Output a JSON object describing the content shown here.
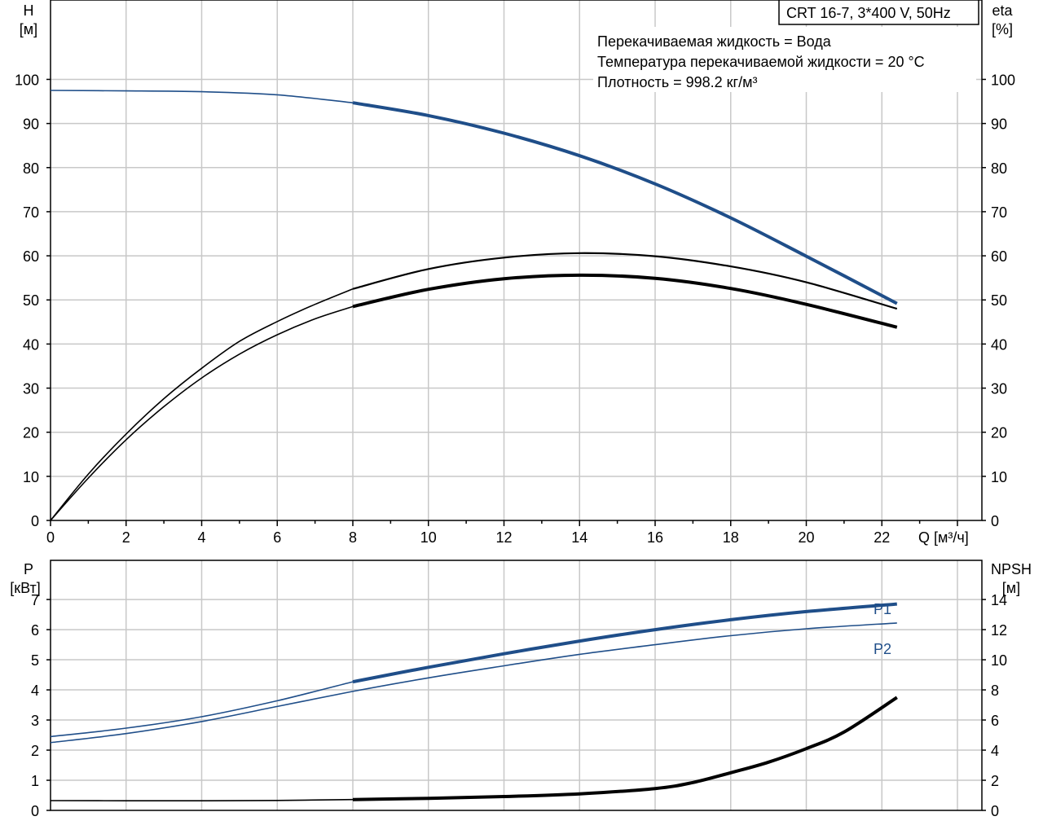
{
  "title_box": "CRT 16-7, 3*400 V, 50Hz",
  "info_lines": [
    "Перекачиваемая жидкость = Вода",
    "Температура перекачиваемой жидкости = 20 °C",
    "Плотность = 998.2 кг/м³"
  ],
  "colors": {
    "blue": "#1f4e89",
    "black": "#000000",
    "grid": "#c8c8c8"
  },
  "chart_data": [
    {
      "type": "line",
      "x_axis": {
        "unit_label": "Q [м³/ч]",
        "range": [
          0,
          24
        ],
        "ticks": [
          0,
          2,
          4,
          6,
          8,
          10,
          12,
          14,
          16,
          18,
          20,
          22
        ]
      },
      "y_left": {
        "label": "H",
        "unit": "[м]",
        "range": [
          0,
          118
        ],
        "ticks": [
          0,
          10,
          20,
          30,
          40,
          50,
          60,
          70,
          80,
          90,
          100
        ]
      },
      "y_right": {
        "label": "eta",
        "unit": "[%]",
        "range": [
          0,
          118
        ],
        "ticks": [
          0,
          10,
          20,
          30,
          40,
          50,
          60,
          70,
          80,
          90,
          100
        ]
      },
      "grid": true,
      "series": [
        {
          "axis": "left",
          "color": "#1f4e89",
          "thin": [
            [
              0,
              97.5
            ],
            [
              2,
              97.4
            ],
            [
              4,
              97.2
            ],
            [
              6,
              96.5
            ],
            [
              8,
              94.7
            ]
          ],
          "bold": [
            [
              8,
              94.7
            ],
            [
              10,
              91.8
            ],
            [
              12,
              87.8
            ],
            [
              14,
              82.7
            ],
            [
              16,
              76.3
            ],
            [
              18,
              68.6
            ],
            [
              20,
              59.9
            ],
            [
              22.4,
              49.2
            ]
          ]
        },
        {
          "axis": "right",
          "color": "#000000",
          "thin": [
            [
              0,
              0
            ],
            [
              1,
              10.5
            ],
            [
              2,
              19.6
            ],
            [
              3,
              27.6
            ],
            [
              4,
              34.5
            ],
            [
              5,
              40.6
            ],
            [
              6,
              45.1
            ],
            [
              7,
              49.0
            ],
            [
              8,
              52.5
            ]
          ],
          "bold": [],
          "thin_tail": [
            [
              8,
              52.5
            ],
            [
              10,
              57.0
            ],
            [
              12,
              59.6
            ],
            [
              14,
              60.6
            ],
            [
              16,
              59.9
            ],
            [
              18,
              57.6
            ],
            [
              20,
              54.0
            ],
            [
              22.4,
              48.0
            ]
          ]
        },
        {
          "axis": "right",
          "color": "#000000",
          "thin": [
            [
              0,
              0
            ],
            [
              1,
              9.6
            ],
            [
              2,
              18.3
            ],
            [
              3,
              25.8
            ],
            [
              4,
              32.3
            ],
            [
              5,
              37.7
            ],
            [
              6,
              42.1
            ],
            [
              7,
              45.7
            ],
            [
              8,
              48.5
            ]
          ],
          "bold": [
            [
              8,
              48.5
            ],
            [
              10,
              52.4
            ],
            [
              12,
              54.8
            ],
            [
              14,
              55.6
            ],
            [
              16,
              54.9
            ],
            [
              18,
              52.6
            ],
            [
              20,
              49.0
            ],
            [
              22.4,
              43.8
            ]
          ]
        }
      ]
    },
    {
      "type": "line",
      "x_axis": {
        "range": [
          0,
          24
        ]
      },
      "y_left": {
        "label": "P",
        "unit": "[кВт]",
        "range": [
          0,
          8.3
        ],
        "ticks": [
          0,
          1,
          2,
          3,
          4,
          5,
          6,
          7
        ]
      },
      "y_right": {
        "label": "NPSH",
        "unit": "[м]",
        "range": [
          0,
          16.6
        ],
        "ticks": [
          0,
          2,
          4,
          6,
          8,
          10,
          12,
          14
        ]
      },
      "grid": true,
      "series": [
        {
          "name": "P1",
          "axis": "left",
          "color": "#1f4e89",
          "thin": [
            [
              0,
              2.45
            ],
            [
              2,
              2.73
            ],
            [
              4,
              3.11
            ],
            [
              6,
              3.64
            ],
            [
              8,
              4.27
            ]
          ],
          "bold": [
            [
              8,
              4.27
            ],
            [
              10,
              4.75
            ],
            [
              12,
              5.2
            ],
            [
              14,
              5.62
            ],
            [
              16,
              6.0
            ],
            [
              18,
              6.33
            ],
            [
              20,
              6.6
            ],
            [
              22.4,
              6.85
            ]
          ]
        },
        {
          "name": "P2",
          "axis": "left",
          "color": "#1f4e89",
          "thin": [
            [
              0,
              2.25
            ],
            [
              2,
              2.55
            ],
            [
              4,
              2.95
            ],
            [
              6,
              3.45
            ],
            [
              8,
              3.95
            ],
            [
              10,
              4.4
            ],
            [
              12,
              4.8
            ],
            [
              14,
              5.18
            ],
            [
              16,
              5.5
            ],
            [
              18,
              5.8
            ],
            [
              20,
              6.03
            ],
            [
              22.4,
              6.22
            ]
          ],
          "bold": []
        },
        {
          "axis": "right",
          "color": "#000000",
          "thin": [
            [
              0,
              0.65
            ],
            [
              2,
              0.64
            ],
            [
              4,
              0.64
            ],
            [
              6,
              0.66
            ],
            [
              8,
              0.72
            ]
          ],
          "bold": [
            [
              8,
              0.72
            ],
            [
              10,
              0.8
            ],
            [
              12,
              0.92
            ],
            [
              14,
              1.1
            ],
            [
              16,
              1.45
            ],
            [
              17,
              1.85
            ],
            [
              18,
              2.5
            ],
            [
              19,
              3.2
            ],
            [
              20,
              4.1
            ],
            [
              21,
              5.2
            ],
            [
              22.4,
              7.5
            ]
          ]
        }
      ]
    }
  ]
}
